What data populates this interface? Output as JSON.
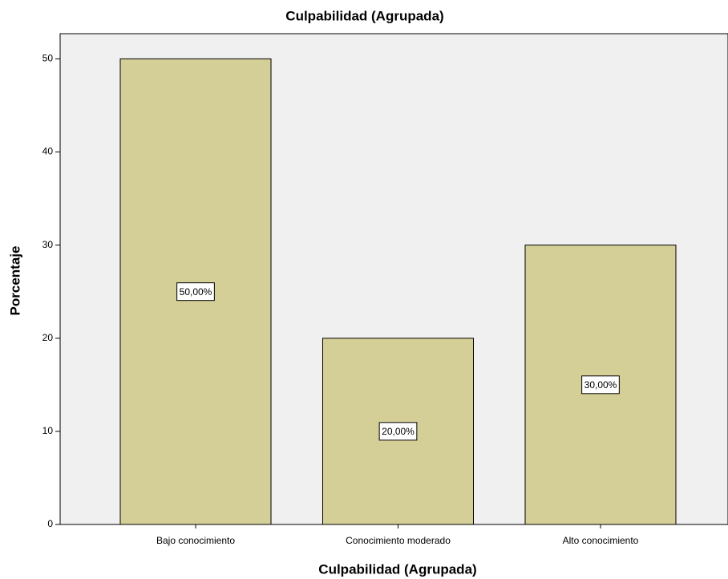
{
  "chart_data": {
    "type": "bar",
    "title": "Culpabilidad (Agrupada)",
    "x_label": "Culpabilidad (Agrupada)",
    "y_label": "Porcentaje",
    "categories": [
      "Bajo conocimiento",
      "Conocimiento moderado",
      "Alto conocimiento"
    ],
    "values": [
      50,
      20,
      30
    ],
    "value_labels": [
      "50,00%",
      "20,00%",
      "30,00%"
    ],
    "color": "#d4ce97",
    "ylim": [
      0,
      52.7
    ],
    "yticks": [
      0,
      10,
      20,
      30,
      40,
      50
    ],
    "grid": false
  }
}
